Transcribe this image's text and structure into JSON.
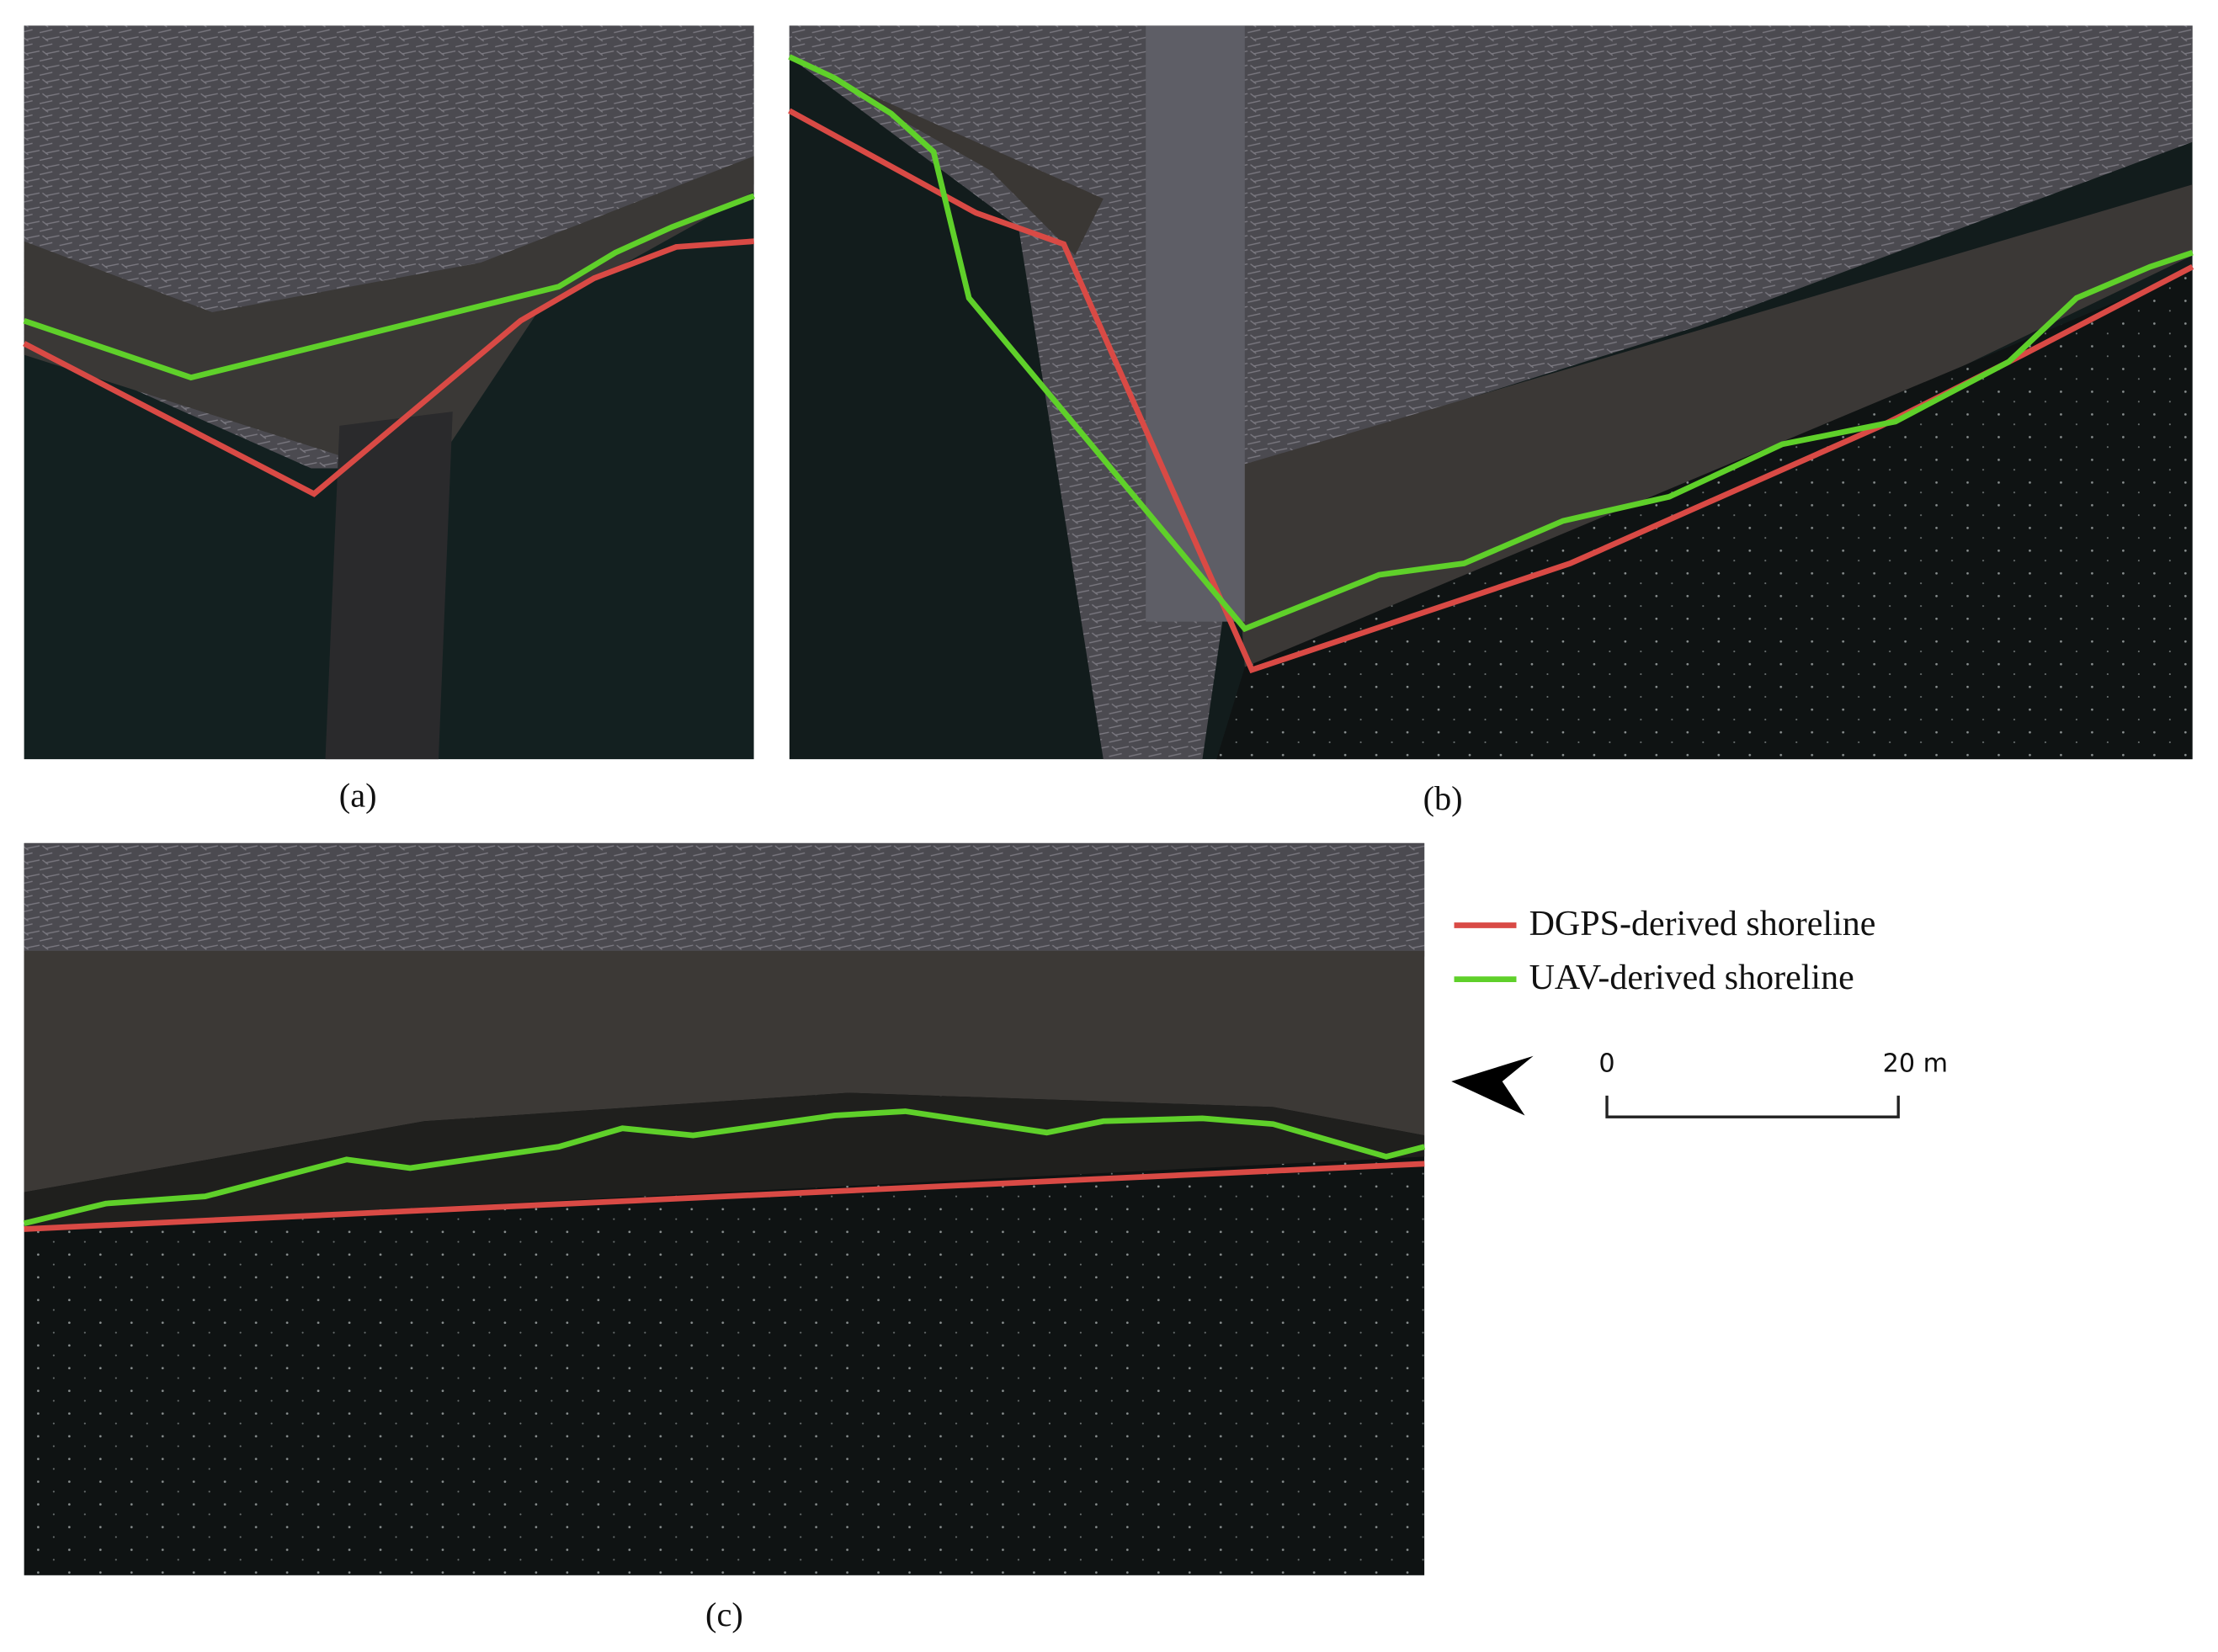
{
  "panels": [
    {
      "label": "(a)"
    },
    {
      "label": "(b)"
    },
    {
      "label": "(c)"
    }
  ],
  "legend": {
    "entries": [
      {
        "label": "DGPS-derived shoreline"
      },
      {
        "label": "UAV-derived shoreline"
      }
    ]
  },
  "scale_bar": {
    "start": "0",
    "end": "20 m"
  }
}
